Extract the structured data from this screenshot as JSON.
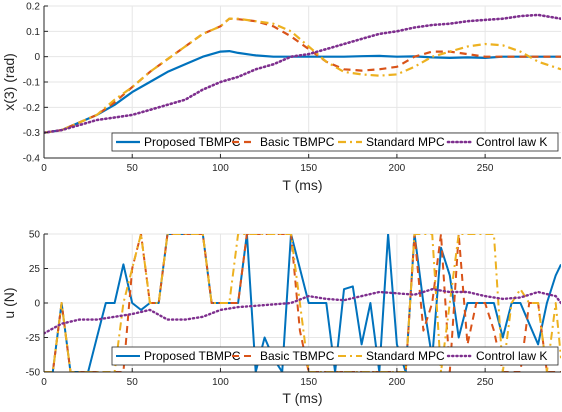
{
  "colors": {
    "proposed": "#0072BD",
    "basic": "#D95319",
    "standard": "#EDB120",
    "control": "#7E2F8E",
    "grid": "#e6e6e6",
    "axis": "#262626"
  },
  "chart_data": [
    {
      "type": "line",
      "xlabel": "T (ms)",
      "ylabel": "x(3) (rad)",
      "xlim": [
        0,
        293
      ],
      "ylim": [
        -0.4,
        0.2
      ],
      "xticks": [
        0,
        50,
        100,
        150,
        200,
        250
      ],
      "yticks": [
        -0.4,
        -0.3,
        -0.2,
        -0.1,
        0,
        0.1,
        0.2
      ],
      "xtick_labels": [
        "0",
        "50",
        "100",
        "150",
        "200",
        "250"
      ],
      "ytick_labels": [
        "-0.4",
        "-0.3",
        "-0.2",
        "-0.1",
        "0",
        "0.1",
        "0.2"
      ],
      "grid": true,
      "legend_position": "bottom",
      "series": [
        {
          "name": "Proposed TBMPC",
          "style": "solid",
          "color_key": "proposed",
          "width": 2.2,
          "x": [
            0,
            10,
            20,
            30,
            40,
            50,
            60,
            70,
            80,
            90,
            100,
            105,
            110,
            120,
            130,
            140,
            150,
            160,
            170,
            180,
            190,
            200,
            210,
            220,
            230,
            240,
            250,
            260,
            270,
            280,
            293
          ],
          "y": [
            -0.3,
            -0.29,
            -0.26,
            -0.23,
            -0.19,
            -0.14,
            -0.1,
            -0.06,
            -0.03,
            0.0,
            0.02,
            0.022,
            0.015,
            0.005,
            0.0,
            0.0,
            0.0,
            0.0,
            0.0,
            0.002,
            0.003,
            0.0,
            0.001,
            -0.003,
            -0.005,
            -0.003,
            -0.005,
            0.0,
            0.0,
            0.0,
            0.0
          ]
        },
        {
          "name": "Basic TBMPC",
          "style": "dashed",
          "color_key": "basic",
          "width": 2.2,
          "x": [
            0,
            10,
            20,
            30,
            40,
            50,
            60,
            70,
            80,
            90,
            100,
            105,
            110,
            120,
            130,
            140,
            150,
            160,
            170,
            180,
            190,
            200,
            210,
            220,
            230,
            240,
            250,
            260,
            270,
            280,
            293
          ],
          "y": [
            -0.3,
            -0.29,
            -0.26,
            -0.23,
            -0.18,
            -0.12,
            -0.06,
            -0.01,
            0.04,
            0.09,
            0.12,
            0.15,
            0.148,
            0.14,
            0.12,
            0.08,
            0.03,
            -0.02,
            -0.05,
            -0.055,
            -0.05,
            -0.04,
            0.0,
            0.02,
            0.02,
            0.01,
            0.0,
            0.0,
            0.0,
            0.0,
            0.0
          ]
        },
        {
          "name": "Standard MPC",
          "style": "dashdot",
          "color_key": "standard",
          "width": 2.2,
          "x": [
            0,
            10,
            20,
            30,
            40,
            50,
            60,
            70,
            80,
            90,
            100,
            105,
            110,
            120,
            130,
            140,
            150,
            160,
            170,
            180,
            190,
            200,
            210,
            220,
            230,
            240,
            250,
            260,
            270,
            280,
            293
          ],
          "y": [
            -0.3,
            -0.29,
            -0.26,
            -0.23,
            -0.17,
            -0.12,
            -0.06,
            -0.01,
            0.04,
            0.09,
            0.12,
            0.15,
            0.15,
            0.14,
            0.13,
            0.1,
            0.04,
            -0.02,
            -0.06,
            -0.07,
            -0.075,
            -0.07,
            -0.04,
            0.0,
            0.02,
            0.04,
            0.05,
            0.045,
            0.02,
            -0.02,
            -0.05
          ]
        },
        {
          "name": "Control law K",
          "style": "dotted",
          "color_key": "control",
          "width": 2.6,
          "x": [
            0,
            10,
            20,
            30,
            40,
            50,
            60,
            70,
            80,
            90,
            100,
            110,
            120,
            130,
            140,
            150,
            160,
            170,
            180,
            190,
            200,
            210,
            220,
            230,
            240,
            250,
            260,
            270,
            280,
            293
          ],
          "y": [
            -0.3,
            -0.29,
            -0.27,
            -0.25,
            -0.24,
            -0.23,
            -0.21,
            -0.19,
            -0.17,
            -0.13,
            -0.1,
            -0.08,
            -0.05,
            -0.03,
            0.0,
            0.01,
            0.03,
            0.05,
            0.07,
            0.09,
            0.1,
            0.115,
            0.125,
            0.13,
            0.14,
            0.145,
            0.15,
            0.16,
            0.165,
            0.15
          ]
        }
      ]
    },
    {
      "type": "line",
      "xlabel": "T (ms)",
      "ylabel": "u (N)",
      "xlim": [
        0,
        293
      ],
      "ylim": [
        -50,
        50
      ],
      "xticks": [
        0,
        50,
        100,
        150,
        200,
        250
      ],
      "yticks": [
        -50,
        -25,
        0,
        25,
        50
      ],
      "xtick_labels": [
        "0",
        "50",
        "100",
        "150",
        "200",
        "250"
      ],
      "ytick_labels": [
        "-50",
        "-25",
        "0",
        "25",
        "50"
      ],
      "grid": true,
      "legend_position": "bottom",
      "series": [
        {
          "name": "Proposed TBMPC",
          "style": "solid",
          "color_key": "proposed",
          "width": 2.0,
          "x": [
            0,
            5,
            10,
            15,
            20,
            25,
            30,
            35,
            40,
            45,
            50,
            55,
            60,
            65,
            70,
            75,
            80,
            85,
            90,
            95,
            100,
            105,
            110,
            115,
            120,
            125,
            130,
            135,
            140,
            145,
            150,
            155,
            160,
            165,
            170,
            175,
            180,
            185,
            190,
            195,
            200,
            205,
            210,
            215,
            220,
            225,
            230,
            235,
            240,
            245,
            250,
            255,
            260,
            265,
            270,
            275,
            280,
            285,
            290,
            293
          ],
          "y": [
            -50,
            -50,
            0,
            -50,
            -50,
            -50,
            -25,
            0,
            0,
            28,
            0,
            -5,
            0,
            0,
            50,
            50,
            50,
            50,
            50,
            0,
            0,
            0,
            0,
            50,
            -50,
            -25,
            -40,
            -50,
            50,
            25,
            0,
            0,
            0,
            -50,
            10,
            12,
            -30,
            0,
            -50,
            50,
            -30,
            -50,
            50,
            0,
            -40,
            40,
            20,
            -25,
            0,
            0,
            0,
            0,
            -25,
            0,
            0,
            -15,
            -30,
            0,
            20,
            28
          ]
        },
        {
          "name": "Basic TBMPC",
          "style": "dashed",
          "color_key": "basic",
          "width": 2.0,
          "x": [
            0,
            5,
            10,
            15,
            20,
            25,
            30,
            35,
            40,
            45,
            50,
            55,
            60,
            65,
            70,
            75,
            80,
            85,
            90,
            95,
            100,
            105,
            110,
            115,
            120,
            125,
            130,
            135,
            140,
            145,
            150,
            155,
            160,
            165,
            170,
            175,
            180,
            185,
            190,
            195,
            200,
            205,
            210,
            215,
            220,
            225,
            230,
            235,
            240,
            245,
            250,
            255,
            260,
            265,
            270,
            275,
            280,
            285,
            290,
            293
          ],
          "y": [
            -50,
            -50,
            0,
            -50,
            -50,
            -50,
            -50,
            -50,
            -50,
            -50,
            25,
            50,
            0,
            0,
            50,
            50,
            50,
            50,
            50,
            0,
            0,
            0,
            0,
            50,
            50,
            50,
            50,
            50,
            50,
            -20,
            -50,
            -50,
            -50,
            -50,
            -50,
            -50,
            -50,
            -50,
            -50,
            -50,
            -50,
            -50,
            50,
            -20,
            0,
            50,
            -50,
            50,
            -30,
            0,
            0,
            -20,
            -50,
            -50,
            -50,
            0,
            0,
            -50,
            -50,
            -50
          ]
        },
        {
          "name": "Standard MPC",
          "style": "dashdot",
          "color_key": "standard",
          "width": 2.0,
          "x": [
            0,
            5,
            10,
            15,
            20,
            25,
            30,
            35,
            40,
            45,
            50,
            55,
            60,
            65,
            70,
            75,
            80,
            85,
            90,
            95,
            100,
            105,
            110,
            115,
            120,
            125,
            130,
            135,
            140,
            145,
            150,
            155,
            160,
            165,
            170,
            175,
            180,
            185,
            190,
            195,
            200,
            205,
            210,
            215,
            220,
            225,
            230,
            235,
            240,
            245,
            250,
            255,
            260,
            265,
            270,
            275,
            280,
            285,
            290,
            293
          ],
          "y": [
            -50,
            -50,
            0,
            -50,
            -50,
            -50,
            -50,
            -50,
            -50,
            0,
            25,
            50,
            0,
            0,
            50,
            50,
            50,
            50,
            50,
            0,
            0,
            0,
            50,
            50,
            50,
            50,
            50,
            50,
            50,
            0,
            -50,
            -50,
            -50,
            -50,
            -50,
            -50,
            -50,
            -50,
            -50,
            -50,
            -50,
            -50,
            50,
            50,
            50,
            -50,
            0,
            50,
            50,
            50,
            50,
            50,
            -50,
            0,
            10,
            0,
            0,
            -50,
            0,
            -40
          ]
        },
        {
          "name": "Control law K",
          "style": "dotted",
          "color_key": "control",
          "width": 2.4,
          "x": [
            0,
            10,
            20,
            30,
            40,
            50,
            60,
            70,
            80,
            90,
            100,
            110,
            120,
            130,
            140,
            150,
            160,
            170,
            180,
            190,
            200,
            210,
            220,
            230,
            240,
            250,
            260,
            270,
            280,
            290,
            293
          ],
          "y": [
            -22,
            -15,
            -12,
            -12,
            -10,
            -8,
            -5,
            -12,
            -12,
            -10,
            -5,
            -3,
            -2,
            -1,
            0,
            5,
            3,
            2,
            5,
            8,
            7,
            6,
            10,
            8,
            8,
            5,
            3,
            4,
            8,
            5,
            0
          ]
        }
      ]
    }
  ]
}
